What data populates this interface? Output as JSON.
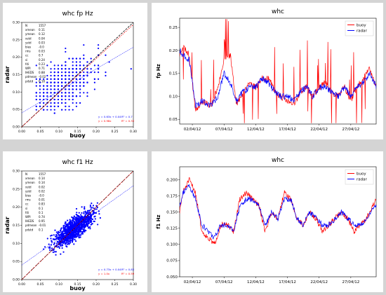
{
  "colors": {
    "buoy": "#ff0000",
    "radar": "#0000ff",
    "scatter": "#0000ff",
    "fit": "#0000ff",
    "fit_origin": "#ff0000",
    "identity": "#000000",
    "background": "#d4d4d4"
  },
  "chart_data": [
    {
      "type": "scatter",
      "title": "whc fp Hz",
      "xlabel": "buoy",
      "ylabel": "radar",
      "xlim": [
        0,
        0.3
      ],
      "ylim": [
        0,
        0.3
      ],
      "xticks": [
        "0.00",
        "0.05",
        "0.10",
        "0.15",
        "0.20",
        "0.25",
        "0.30"
      ],
      "yticks": [
        "0.00",
        "0.05",
        "0.10",
        "0.15",
        "0.20",
        "0.25",
        "0.30"
      ],
      "stats": [
        {
          "name": "N",
          "value": "1557"
        },
        {
          "name": "xmean",
          "value": "0.11"
        },
        {
          "name": "ymean",
          "value": "0.12"
        },
        {
          "name": "xstd",
          "value": "0.04"
        },
        {
          "name": "ystd",
          "value": "0.03"
        },
        {
          "name": "bias",
          "value": "-0.0"
        },
        {
          "name": "rms",
          "value": "0.03"
        },
        {
          "name": "cc",
          "value": "0.7"
        },
        {
          "name": "si",
          "value": "0.24"
        },
        {
          "name": "fdi",
          "value": "0.23"
        },
        {
          "name": "WPI",
          "value": "0.71"
        },
        {
          "name": "IHEDS",
          "value": "0.88"
        },
        {
          "name": "pdmean",
          "value": "-0.02"
        },
        {
          "name": "pdstd",
          "value": "0.18"
        }
      ],
      "fit": {
        "slope": 0.63,
        "intercept": 0.04,
        "label": "y = 0.63x + 0.04",
        "r2": "R² = 0.7"
      },
      "fit_origin": {
        "slope": 0.98,
        "label": "y = 0.98x",
        "r2": "R² = 0.33"
      },
      "bin_step": 0.0098,
      "points": {
        "n": 700,
        "x_center": 0.11,
        "y_center": 0.12,
        "x_spread": 0.04,
        "correlation": 0.6
      }
    },
    {
      "type": "line",
      "title": "whc",
      "ylabel": "fp Hz",
      "xlim": [
        0,
        31
      ],
      "ylim": [
        0.04,
        0.27
      ],
      "xticks": [
        "02/04/12",
        "07/04/12",
        "12/04/12",
        "17/04/12",
        "22/04/12",
        "27/04/12"
      ],
      "yticks": [
        "0.05",
        "0.10",
        "0.15",
        "0.20",
        "0.25"
      ],
      "legend_position": "top-right",
      "series": [
        {
          "name": "buoy",
          "keyframes": [
            [
              0,
              0.19
            ],
            [
              0.5,
              0.21
            ],
            [
              1.5,
              0.19
            ],
            [
              2.5,
              0.07
            ],
            [
              3.5,
              0.09
            ],
            [
              5,
              0.08
            ],
            [
              6,
              0.12
            ],
            [
              7,
              0.18
            ],
            [
              8,
              0.19
            ],
            [
              9,
              0.08
            ],
            [
              10,
              0.11
            ],
            [
              11,
              0.13
            ],
            [
              12,
              0.12
            ],
            [
              13,
              0.14
            ],
            [
              14,
              0.14
            ],
            [
              15,
              0.11
            ],
            [
              16,
              0.1
            ],
            [
              17,
              0.09
            ],
            [
              18,
              0.08
            ],
            [
              19,
              0.11
            ],
            [
              20,
              0.12
            ],
            [
              21,
              0.1
            ],
            [
              22,
              0.12
            ],
            [
              23,
              0.13
            ],
            [
              24,
              0.11
            ],
            [
              25,
              0.1
            ],
            [
              26,
              0.12
            ],
            [
              27,
              0.09
            ],
            [
              28,
              0.12
            ],
            [
              29,
              0.14
            ],
            [
              30,
              0.16
            ],
            [
              31,
              0.12
            ]
          ]
        },
        {
          "name": "radar",
          "keyframes": [
            [
              0,
              0.2
            ],
            [
              0.5,
              0.19
            ],
            [
              1.5,
              0.18
            ],
            [
              2.5,
              0.08
            ],
            [
              3.5,
              0.09
            ],
            [
              5,
              0.08
            ],
            [
              6,
              0.1
            ],
            [
              7,
              0.15
            ],
            [
              8,
              0.13
            ],
            [
              9,
              0.09
            ],
            [
              10,
              0.11
            ],
            [
              11,
              0.12
            ],
            [
              12,
              0.12
            ],
            [
              13,
              0.14
            ],
            [
              14,
              0.13
            ],
            [
              15,
              0.11
            ],
            [
              16,
              0.1
            ],
            [
              17,
              0.1
            ],
            [
              18,
              0.09
            ],
            [
              19,
              0.11
            ],
            [
              20,
              0.12
            ],
            [
              21,
              0.1
            ],
            [
              22,
              0.12
            ],
            [
              23,
              0.12
            ],
            [
              24,
              0.11
            ],
            [
              25,
              0.1
            ],
            [
              26,
              0.12
            ],
            [
              27,
              0.1
            ],
            [
              28,
              0.12
            ],
            [
              29,
              0.13
            ],
            [
              30,
              0.15
            ],
            [
              31,
              0.12
            ]
          ]
        }
      ]
    },
    {
      "type": "scatter",
      "title": "whc f1 Hz",
      "xlabel": "buoy",
      "ylabel": "radar",
      "xlim": [
        0,
        0.3
      ],
      "ylim": [
        0,
        0.3
      ],
      "xticks": [
        "0.00",
        "0.05",
        "0.10",
        "0.15",
        "0.20",
        "0.25",
        "0.30"
      ],
      "yticks": [
        "0.00",
        "0.05",
        "0.10",
        "0.15",
        "0.20",
        "0.25",
        "0.30"
      ],
      "stats": [
        {
          "name": "N",
          "value": "1557"
        },
        {
          "name": "xmean",
          "value": "0.14"
        },
        {
          "name": "ymean",
          "value": "0.14"
        },
        {
          "name": "xstd",
          "value": "0.02"
        },
        {
          "name": "ystd",
          "value": "0.02"
        },
        {
          "name": "bias",
          "value": "-0.0"
        },
        {
          "name": "rms",
          "value": "0.01"
        },
        {
          "name": "cc",
          "value": "0.83"
        },
        {
          "name": "si",
          "value": "0.1"
        },
        {
          "name": "fdi",
          "value": "0.1"
        },
        {
          "name": "WPI",
          "value": "0.74"
        },
        {
          "name": "IHEDS",
          "value": "0.95"
        },
        {
          "name": "pdmean",
          "value": "-0.01"
        },
        {
          "name": "pdstd",
          "value": "0.1"
        }
      ],
      "fit": {
        "slope": 0.73,
        "intercept": 0.04,
        "label": "y = 0.73x + 0.04",
        "r2": "R² = 0.83"
      },
      "fit_origin": {
        "slope": 1.0,
        "label": "y = 1.0x",
        "r2": "R² = 0.59"
      },
      "bin_step": 0,
      "points": {
        "n": 1100,
        "x_center": 0.14,
        "y_center": 0.14,
        "x_spread": 0.025,
        "correlation": 0.8
      }
    },
    {
      "type": "line",
      "title": "whc",
      "ylabel": "f1 Hz",
      "xlim": [
        0,
        31
      ],
      "ylim": [
        0.05,
        0.22
      ],
      "xticks": [
        "02/04/12",
        "07/04/12",
        "12/04/12",
        "17/04/12",
        "22/04/12",
        "27/04/12"
      ],
      "yticks": [
        "0.050",
        "0.075",
        "0.100",
        "0.125",
        "0.150",
        "0.175",
        "0.200"
      ],
      "legend_position": "top-right",
      "series": [
        {
          "name": "buoy",
          "keyframes": [
            [
              0,
              0.15
            ],
            [
              0.5,
              0.18
            ],
            [
              1.5,
              0.2
            ],
            [
              2.5,
              0.18
            ],
            [
              3.5,
              0.12
            ],
            [
              4.5,
              0.11
            ],
            [
              5.5,
              0.1
            ],
            [
              6.5,
              0.13
            ],
            [
              7.5,
              0.13
            ],
            [
              8.5,
              0.12
            ],
            [
              9.5,
              0.17
            ],
            [
              10.5,
              0.18
            ],
            [
              11.5,
              0.17
            ],
            [
              12.5,
              0.16
            ],
            [
              13.5,
              0.12
            ],
            [
              14.5,
              0.15
            ],
            [
              15.5,
              0.14
            ],
            [
              16.5,
              0.18
            ],
            [
              17.5,
              0.17
            ],
            [
              18.5,
              0.14
            ],
            [
              19.5,
              0.13
            ],
            [
              20.5,
              0.15
            ],
            [
              21.5,
              0.14
            ],
            [
              22.5,
              0.12
            ],
            [
              23.5,
              0.13
            ],
            [
              24.5,
              0.14
            ],
            [
              25.5,
              0.15
            ],
            [
              26.5,
              0.14
            ],
            [
              27.5,
              0.12
            ],
            [
              28.5,
              0.13
            ],
            [
              29.5,
              0.14
            ],
            [
              31,
              0.17
            ]
          ]
        },
        {
          "name": "radar",
          "keyframes": [
            [
              0,
              0.16
            ],
            [
              0.5,
              0.18
            ],
            [
              1.5,
              0.19
            ],
            [
              2.5,
              0.17
            ],
            [
              3.5,
              0.13
            ],
            [
              4.5,
              0.12
            ],
            [
              5.5,
              0.11
            ],
            [
              6.5,
              0.13
            ],
            [
              7.5,
              0.13
            ],
            [
              8.5,
              0.12
            ],
            [
              9.5,
              0.16
            ],
            [
              10.5,
              0.17
            ],
            [
              11.5,
              0.17
            ],
            [
              12.5,
              0.16
            ],
            [
              13.5,
              0.13
            ],
            [
              14.5,
              0.15
            ],
            [
              15.5,
              0.14
            ],
            [
              16.5,
              0.17
            ],
            [
              17.5,
              0.17
            ],
            [
              18.5,
              0.14
            ],
            [
              19.5,
              0.13
            ],
            [
              20.5,
              0.15
            ],
            [
              21.5,
              0.14
            ],
            [
              22.5,
              0.13
            ],
            [
              23.5,
              0.13
            ],
            [
              24.5,
              0.14
            ],
            [
              25.5,
              0.15
            ],
            [
              26.5,
              0.14
            ],
            [
              27.5,
              0.13
            ],
            [
              28.5,
              0.13
            ],
            [
              29.5,
              0.14
            ],
            [
              31,
              0.16
            ]
          ]
        }
      ]
    }
  ]
}
